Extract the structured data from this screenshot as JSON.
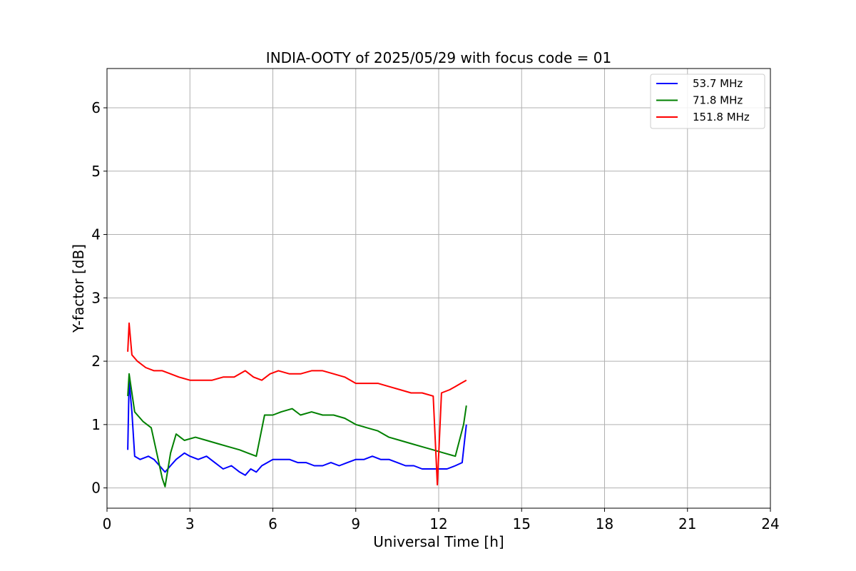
{
  "chart_data": {
    "type": "line",
    "title": "INDIA-OOTY of 2025/05/29 with focus code = 01",
    "xlabel": "Universal Time [h]",
    "ylabel": "Y-factor [dB]",
    "xlim": [
      0,
      24
    ],
    "ylim": [
      -0.32,
      6.62
    ],
    "xticks": [
      0,
      3,
      6,
      9,
      12,
      15,
      18,
      21,
      24
    ],
    "yticks": [
      0,
      1,
      2,
      3,
      4,
      5,
      6
    ],
    "grid": true,
    "legend_position": "top-right",
    "series": [
      {
        "name": "53.7 MHz",
        "color": "#0000ff",
        "x": [
          0.75,
          0.8,
          0.9,
          1.0,
          1.2,
          1.5,
          1.7,
          1.9,
          2.1,
          2.3,
          2.5,
          2.8,
          3.0,
          3.3,
          3.6,
          3.9,
          4.2,
          4.5,
          4.8,
          5.0,
          5.2,
          5.4,
          5.6,
          5.8,
          6.0,
          6.3,
          6.6,
          6.9,
          7.2,
          7.5,
          7.8,
          8.1,
          8.4,
          8.7,
          9.0,
          9.3,
          9.6,
          9.9,
          10.2,
          10.5,
          10.8,
          11.1,
          11.4,
          11.7,
          12.0,
          12.3,
          12.6,
          12.85,
          12.95,
          13.0
        ],
        "y": [
          0.6,
          1.7,
          1.2,
          0.5,
          0.45,
          0.5,
          0.45,
          0.35,
          0.25,
          0.35,
          0.45,
          0.55,
          0.5,
          0.45,
          0.5,
          0.4,
          0.3,
          0.35,
          0.25,
          0.2,
          0.3,
          0.25,
          0.35,
          0.4,
          0.45,
          0.45,
          0.45,
          0.4,
          0.4,
          0.35,
          0.35,
          0.4,
          0.35,
          0.4,
          0.45,
          0.45,
          0.5,
          0.45,
          0.45,
          0.4,
          0.35,
          0.35,
          0.3,
          0.3,
          0.3,
          0.3,
          0.35,
          0.4,
          0.8,
          1.0
        ]
      },
      {
        "name": "71.8 MHz",
        "color": "#008000",
        "x": [
          0.75,
          0.8,
          1.0,
          1.3,
          1.6,
          1.8,
          2.0,
          2.1,
          2.3,
          2.5,
          2.8,
          3.2,
          3.6,
          4.0,
          4.4,
          4.8,
          5.1,
          5.4,
          5.7,
          6.0,
          6.3,
          6.7,
          7.0,
          7.4,
          7.8,
          8.2,
          8.6,
          9.0,
          9.4,
          9.8,
          10.2,
          10.6,
          11.0,
          11.4,
          11.8,
          12.2,
          12.6,
          12.9,
          13.0
        ],
        "y": [
          1.45,
          1.8,
          1.2,
          1.05,
          0.95,
          0.55,
          0.15,
          0.02,
          0.55,
          0.85,
          0.75,
          0.8,
          0.75,
          0.7,
          0.65,
          0.6,
          0.55,
          0.5,
          1.15,
          1.15,
          1.2,
          1.25,
          1.15,
          1.2,
          1.15,
          1.15,
          1.1,
          1.0,
          0.95,
          0.9,
          0.8,
          0.75,
          0.7,
          0.65,
          0.6,
          0.55,
          0.5,
          1.0,
          1.3
        ]
      },
      {
        "name": "151.8 MHz",
        "color": "#ff0000",
        "x": [
          0.75,
          0.8,
          0.9,
          1.1,
          1.4,
          1.7,
          2.0,
          2.3,
          2.6,
          3.0,
          3.4,
          3.8,
          4.2,
          4.6,
          5.0,
          5.3,
          5.6,
          5.9,
          6.2,
          6.6,
          7.0,
          7.4,
          7.8,
          8.2,
          8.6,
          9.0,
          9.4,
          9.8,
          10.2,
          10.6,
          11.0,
          11.4,
          11.8,
          11.95,
          12.1,
          12.4,
          12.6,
          12.8,
          13.0
        ],
        "y": [
          2.15,
          2.6,
          2.1,
          2.0,
          1.9,
          1.85,
          1.85,
          1.8,
          1.75,
          1.7,
          1.7,
          1.7,
          1.75,
          1.75,
          1.85,
          1.75,
          1.7,
          1.8,
          1.85,
          1.8,
          1.8,
          1.85,
          1.85,
          1.8,
          1.75,
          1.65,
          1.65,
          1.65,
          1.6,
          1.55,
          1.5,
          1.5,
          1.45,
          0.05,
          1.5,
          1.55,
          1.6,
          1.65,
          1.7
        ]
      }
    ],
    "annotations": []
  }
}
